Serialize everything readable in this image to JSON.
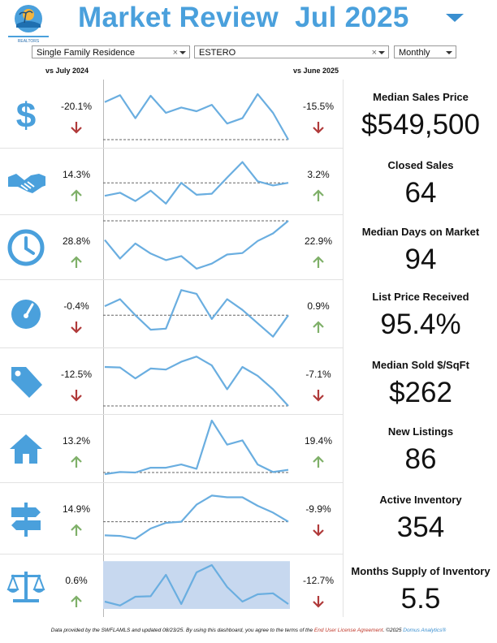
{
  "header": {
    "title": "Market Review  Jul 2025",
    "logo_text": "REALTORS"
  },
  "filters": {
    "property_type": "Single Family Residence",
    "city": "ESTERO",
    "period": "Monthly",
    "clear_symbol": "×"
  },
  "columns": {
    "vs_year": "vs July 2024",
    "vs_month": "vs June 2025"
  },
  "colors": {
    "accent": "#4aa0dc",
    "up": "#7fb069",
    "down": "#b03a3a",
    "line": "#6aaee0"
  },
  "metrics": [
    {
      "label": "Median Sales Price",
      "value": "$549,500",
      "vs_year": "-20.1%",
      "vs_month": "-15.5%",
      "year_dir": "down",
      "month_dir": "down",
      "icon": "dollar-icon",
      "trend": [
        0.7,
        0.83,
        0.4,
        0.82,
        0.5,
        0.6,
        0.53,
        0.65,
        0.3,
        0.4,
        0.85,
        0.5,
        0.0
      ],
      "ref": 0.0
    },
    {
      "label": "Closed Sales",
      "value": "64",
      "vs_year": "14.3%",
      "vs_month": "3.2%",
      "year_dir": "up",
      "month_dir": "up",
      "icon": "handshake-icon",
      "trend": [
        0.2,
        0.26,
        0.1,
        0.3,
        0.05,
        0.45,
        0.22,
        0.24,
        0.55,
        0.85,
        0.48,
        0.4,
        0.45
      ],
      "ref": 0.45
    },
    {
      "label": "Median Days on Market",
      "value": "94",
      "vs_year": "28.8%",
      "vs_month": "22.9%",
      "year_dir": "up",
      "month_dir": "up",
      "icon": "clock-icon",
      "trend": [
        0.62,
        0.25,
        0.55,
        0.35,
        0.22,
        0.3,
        0.05,
        0.15,
        0.33,
        0.36,
        0.6,
        0.75,
        1.0
      ],
      "ref": 1.0
    },
    {
      "label": "List Price Received",
      "value": "95.4%",
      "vs_year": "-0.4%",
      "vs_month": "0.9%",
      "year_dir": "down",
      "month_dir": "up",
      "icon": "gauge-icon",
      "trend": [
        0.62,
        0.75,
        0.45,
        0.18,
        0.2,
        0.92,
        0.85,
        0.38,
        0.75,
        0.55,
        0.3,
        0.05,
        0.45
      ],
      "ref": 0.45
    },
    {
      "label": "Median Sold $/SqFt",
      "value": "$262",
      "vs_year": "-12.5%",
      "vs_month": "-7.1%",
      "year_dir": "down",
      "month_dir": "down",
      "icon": "price-tag-icon",
      "trend": [
        0.75,
        0.74,
        0.53,
        0.72,
        0.7,
        0.85,
        0.95,
        0.78,
        0.32,
        0.75,
        0.58,
        0.32,
        0.0
      ],
      "ref": 0.0
    },
    {
      "label": "New Listings",
      "value": "86",
      "vs_year": "13.2%",
      "vs_month": "19.4%",
      "year_dir": "up",
      "month_dir": "up",
      "icon": "house-icon",
      "trend": [
        0.0,
        0.04,
        0.03,
        0.12,
        0.12,
        0.18,
        0.1,
        1.0,
        0.55,
        0.63,
        0.18,
        0.04,
        0.08
      ],
      "ref": 0.03
    },
    {
      "label": "Active Inventory",
      "value": "354",
      "vs_year": "14.9%",
      "vs_month": "-9.9%",
      "year_dir": "up",
      "month_dir": "down",
      "icon": "signpost-icon",
      "trend": [
        0.18,
        0.17,
        0.12,
        0.3,
        0.4,
        0.42,
        0.72,
        0.88,
        0.85,
        0.85,
        0.7,
        0.58,
        0.42
      ],
      "ref": 0.42
    },
    {
      "label": "Months Supply of Inventory",
      "value": "5.5",
      "vs_year": "0.6%",
      "vs_month": "-12.7%",
      "year_dir": "up",
      "month_dir": "down",
      "icon": "scales-icon",
      "trend": [
        0.15,
        0.07,
        0.25,
        0.26,
        0.7,
        0.1,
        0.75,
        0.9,
        0.45,
        0.15,
        0.3,
        0.32,
        0.1
      ],
      "ref": 0.0
    }
  ],
  "footer": {
    "text1": "Data provided by the SWFLAMLS and updated 08/23/25.  By using this dashboard, you agree to the terms of the ",
    "link": "End User License Agreement",
    "text2": ".  ©2025 ",
    "brand": "Domus Analytics®"
  }
}
